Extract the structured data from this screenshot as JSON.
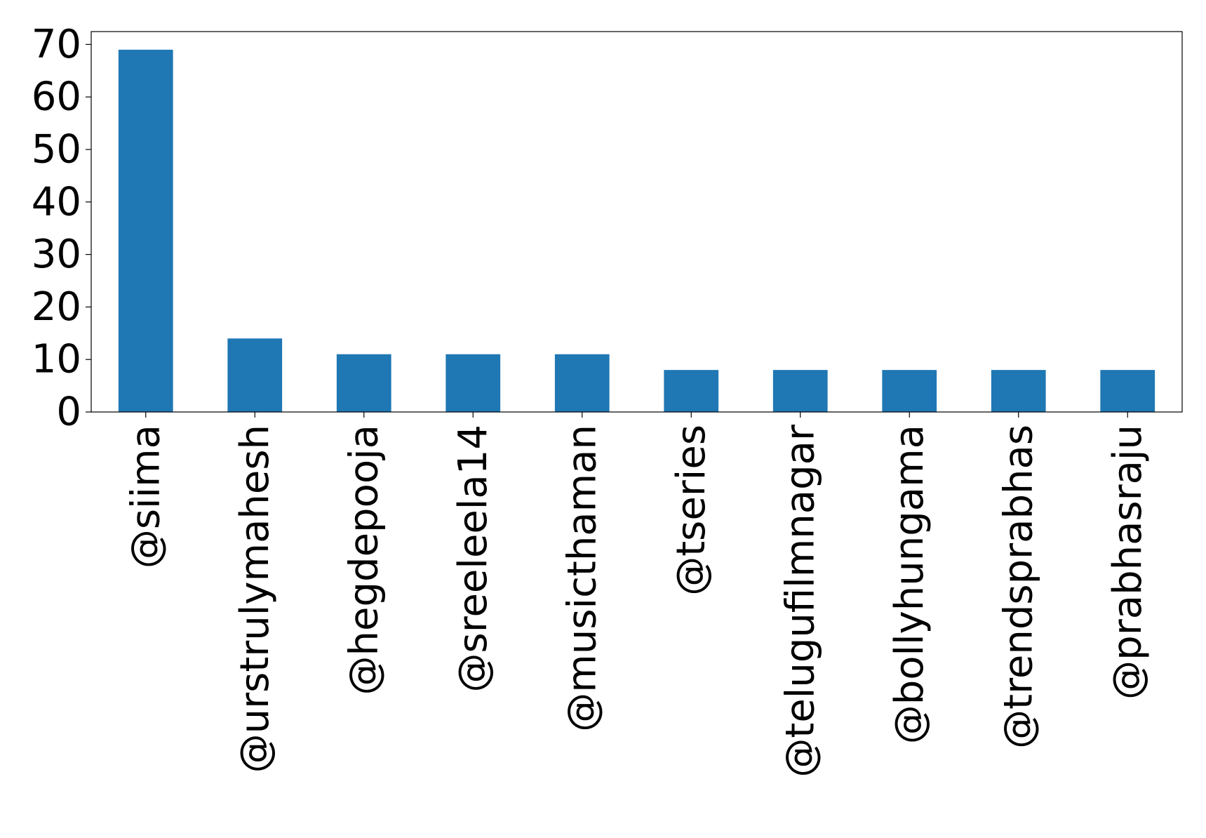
{
  "chart_data": {
    "type": "bar",
    "categories": [
      "@siima",
      "@urstrulymahesh",
      "@hegdepooja",
      "@sreeleela14",
      "@musicthaman",
      "@tseries",
      "@telugufilmnagar",
      "@bollyhungama",
      "@trendsprabhas",
      "@prabhasraju"
    ],
    "values": [
      69,
      14,
      11,
      11,
      11,
      8,
      8,
      8,
      8,
      8
    ],
    "title": "",
    "xlabel": "",
    "ylabel": "",
    "ylim": [
      0,
      72.45
    ],
    "yticks": [
      0,
      10,
      20,
      30,
      40,
      50,
      60,
      70
    ],
    "grid": false,
    "bar_color": "#1f77b4"
  }
}
